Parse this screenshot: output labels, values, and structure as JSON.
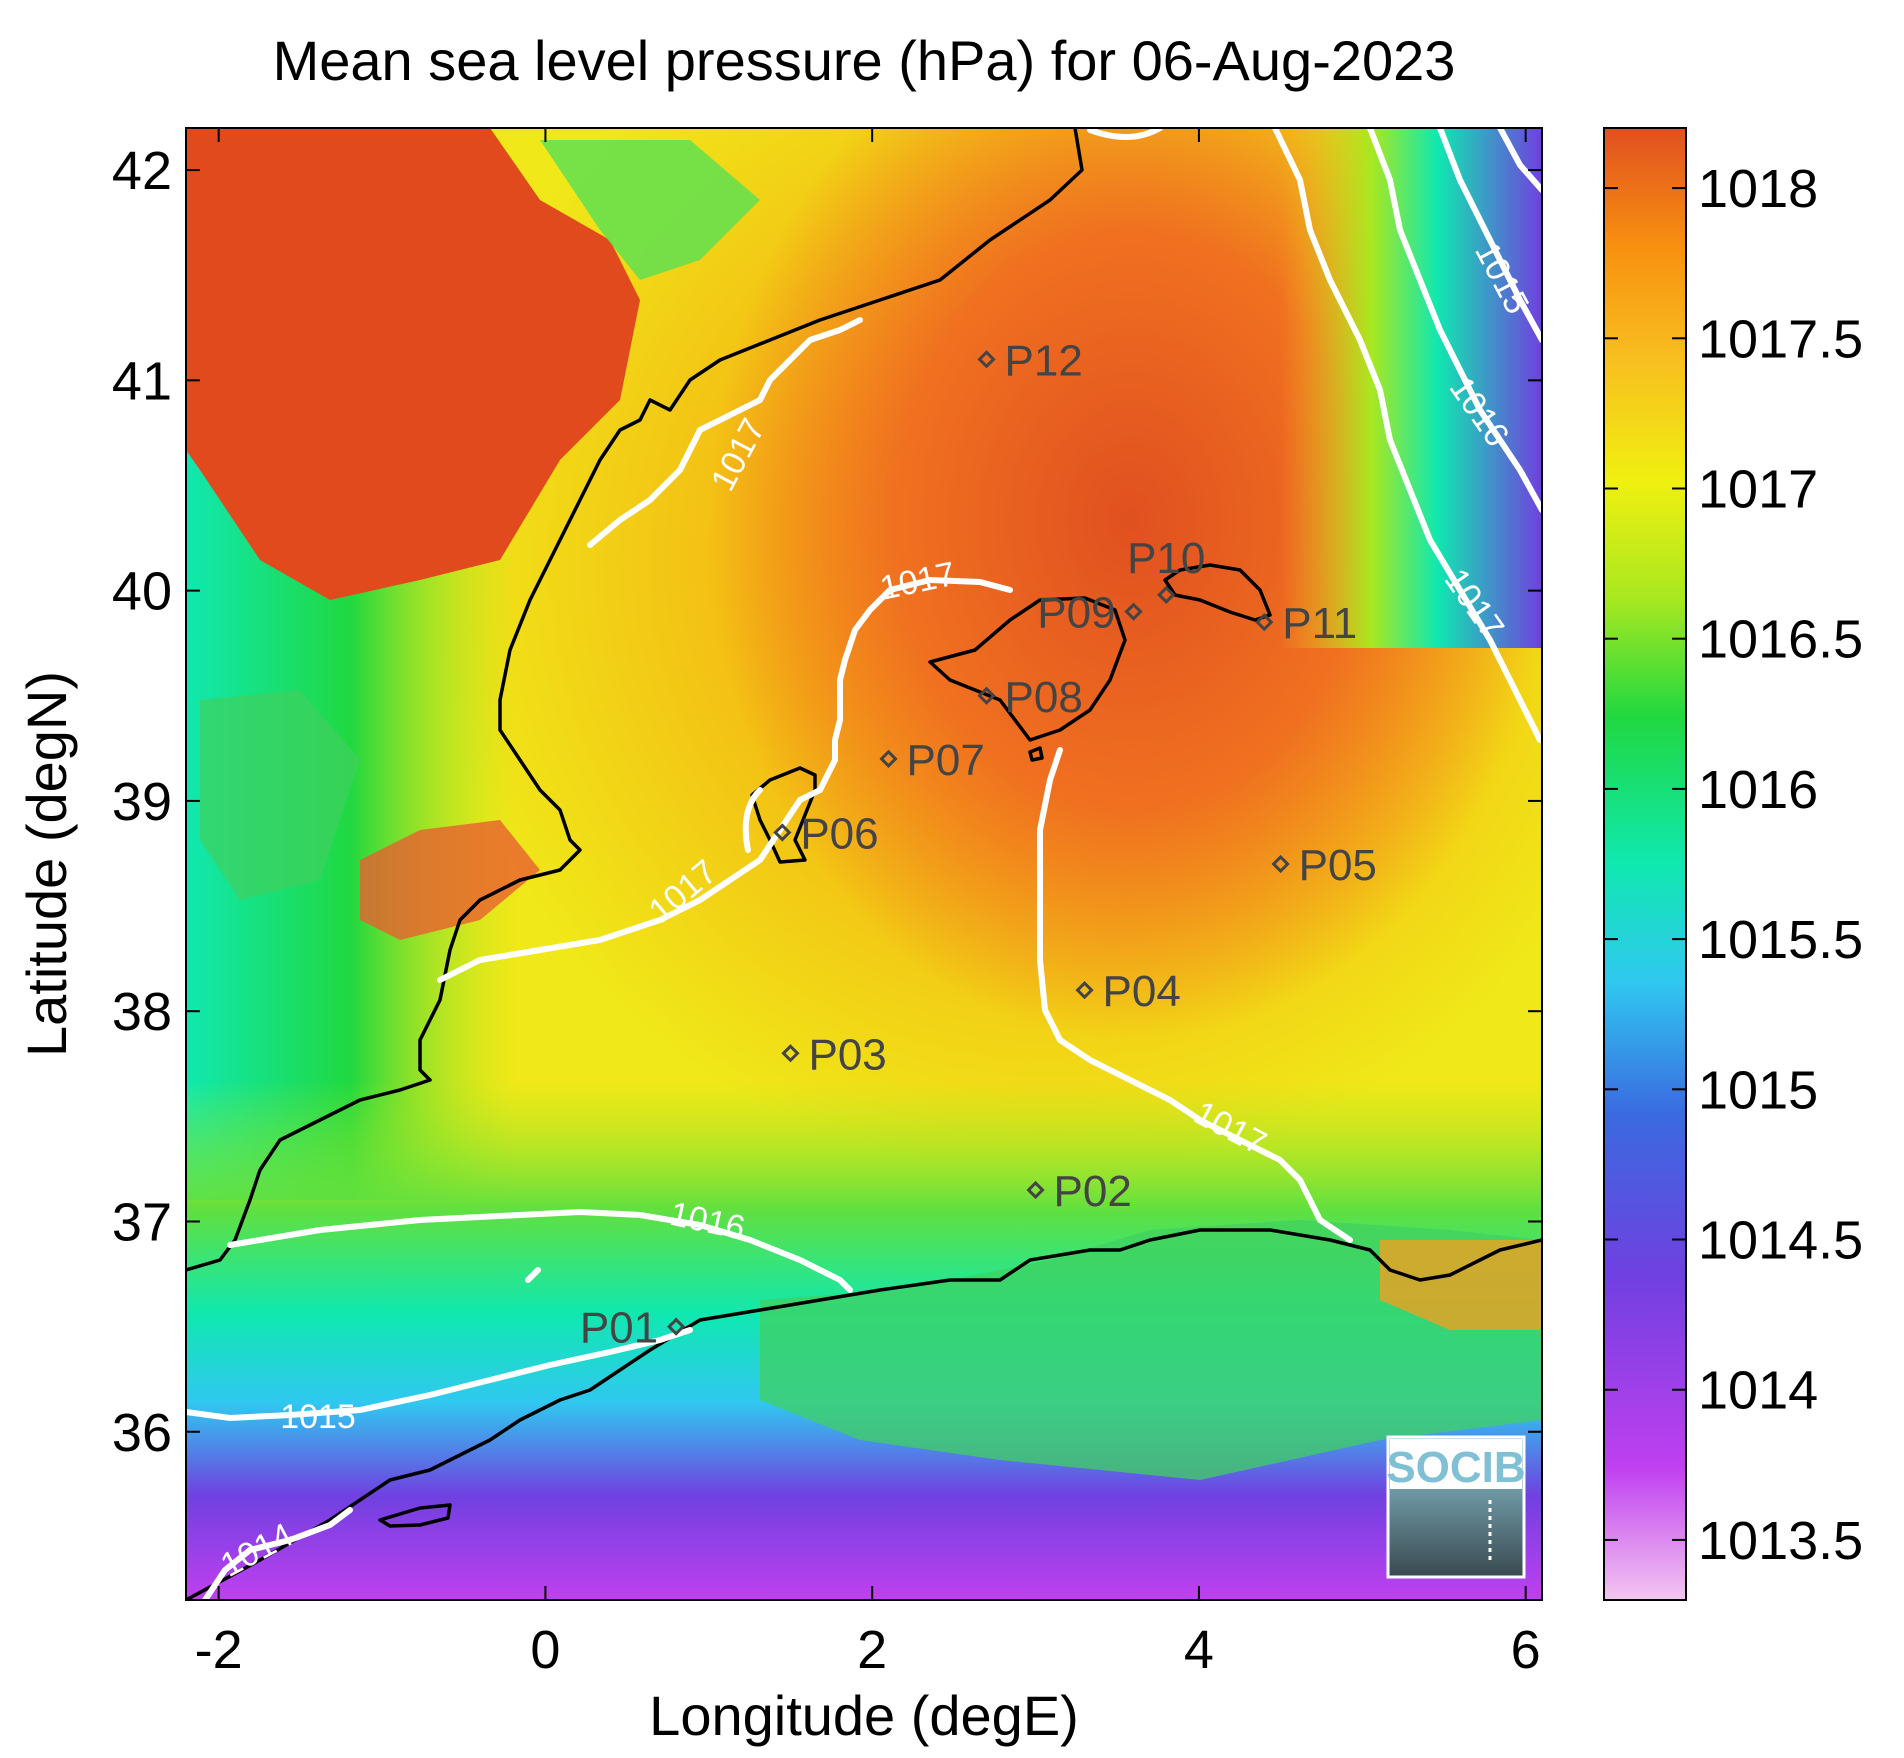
{
  "title": "Mean sea level pressure (hPa) for 06-Aug-2023",
  "axes": {
    "xlabel": "Longitude (degE)",
    "ylabel": "Latitude (degN)",
    "xlim": [
      -2.2,
      6.1
    ],
    "ylim": [
      35.2,
      42.2
    ],
    "xticks": [
      -2,
      0,
      2,
      4,
      6
    ],
    "yticks": [
      36,
      37,
      38,
      39,
      40,
      41,
      42
    ]
  },
  "colorbar": {
    "range": [
      1013.3,
      1018.2
    ],
    "ticks": [
      "1018",
      "1017.5",
      "1017",
      "1016.5",
      "1016",
      "1015.5",
      "1015",
      "1014.5",
      "1014",
      "1013.5"
    ],
    "colors": [
      "#f3c6f0",
      "#c040f0",
      "#7040e0",
      "#3a6ae0",
      "#30c8f0",
      "#10e8b0",
      "#20d840",
      "#a8e820",
      "#f0f010",
      "#f8c020",
      "#f89010",
      "#e05020"
    ]
  },
  "stations": [
    {
      "name": "P01",
      "lon": 0.8,
      "lat": 36.5,
      "label_side": "left"
    },
    {
      "name": "P02",
      "lon": 3.0,
      "lat": 37.15,
      "label_side": "right"
    },
    {
      "name": "P03",
      "lon": 1.5,
      "lat": 37.8,
      "label_side": "right"
    },
    {
      "name": "P04",
      "lon": 3.3,
      "lat": 38.1,
      "label_side": "right"
    },
    {
      "name": "P05",
      "lon": 4.5,
      "lat": 38.7,
      "label_side": "right"
    },
    {
      "name": "P06",
      "lon": 1.45,
      "lat": 38.85,
      "label_side": "right"
    },
    {
      "name": "P07",
      "lon": 2.1,
      "lat": 39.2,
      "label_side": "right"
    },
    {
      "name": "P08",
      "lon": 2.7,
      "lat": 39.5,
      "label_side": "right"
    },
    {
      "name": "P09",
      "lon": 3.6,
      "lat": 39.9,
      "label_side": "left"
    },
    {
      "name": "P10",
      "lon": 3.8,
      "lat": 39.98,
      "label_side": "above"
    },
    {
      "name": "P11",
      "lon": 4.4,
      "lat": 39.85,
      "label_side": "right"
    },
    {
      "name": "P12",
      "lon": 2.7,
      "lat": 41.1,
      "label_side": "right"
    }
  ],
  "contour_labels": [
    "1017",
    "1017",
    "1017",
    "1017",
    "1017",
    "1016",
    "1015",
    "1014",
    "1015",
    "1016"
  ],
  "logo": {
    "text": "SOCIB"
  }
}
